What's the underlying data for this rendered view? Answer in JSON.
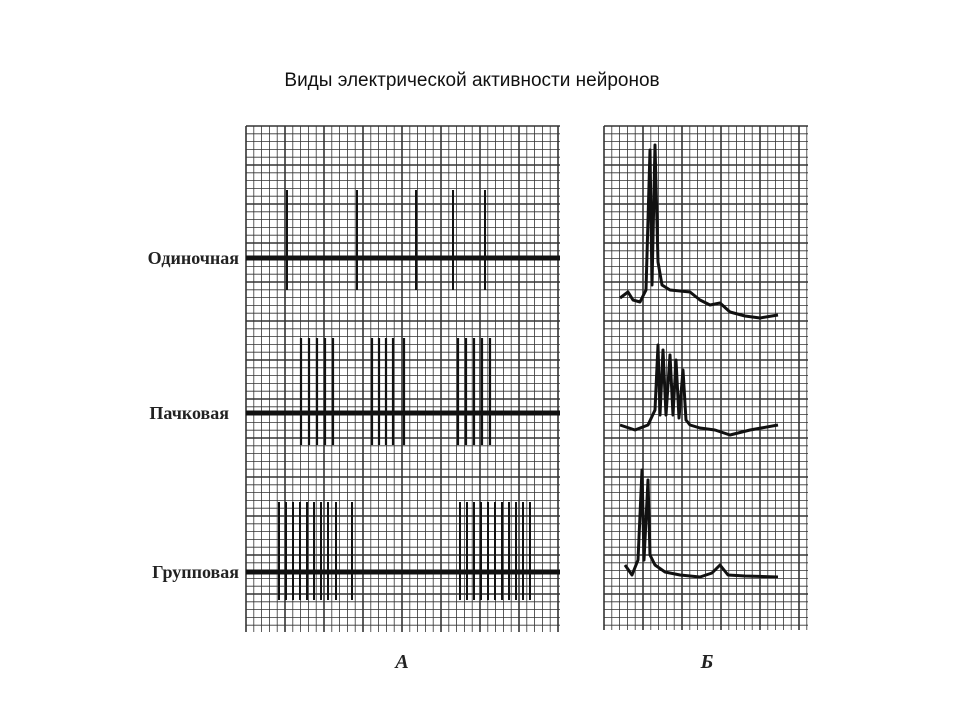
{
  "title": "Виды электрической активности нейронов",
  "panels": [
    {
      "label": "А",
      "rows": [
        "Одиночная",
        "Пачковая",
        "Групповая"
      ]
    },
    {
      "label": "Б"
    }
  ]
}
